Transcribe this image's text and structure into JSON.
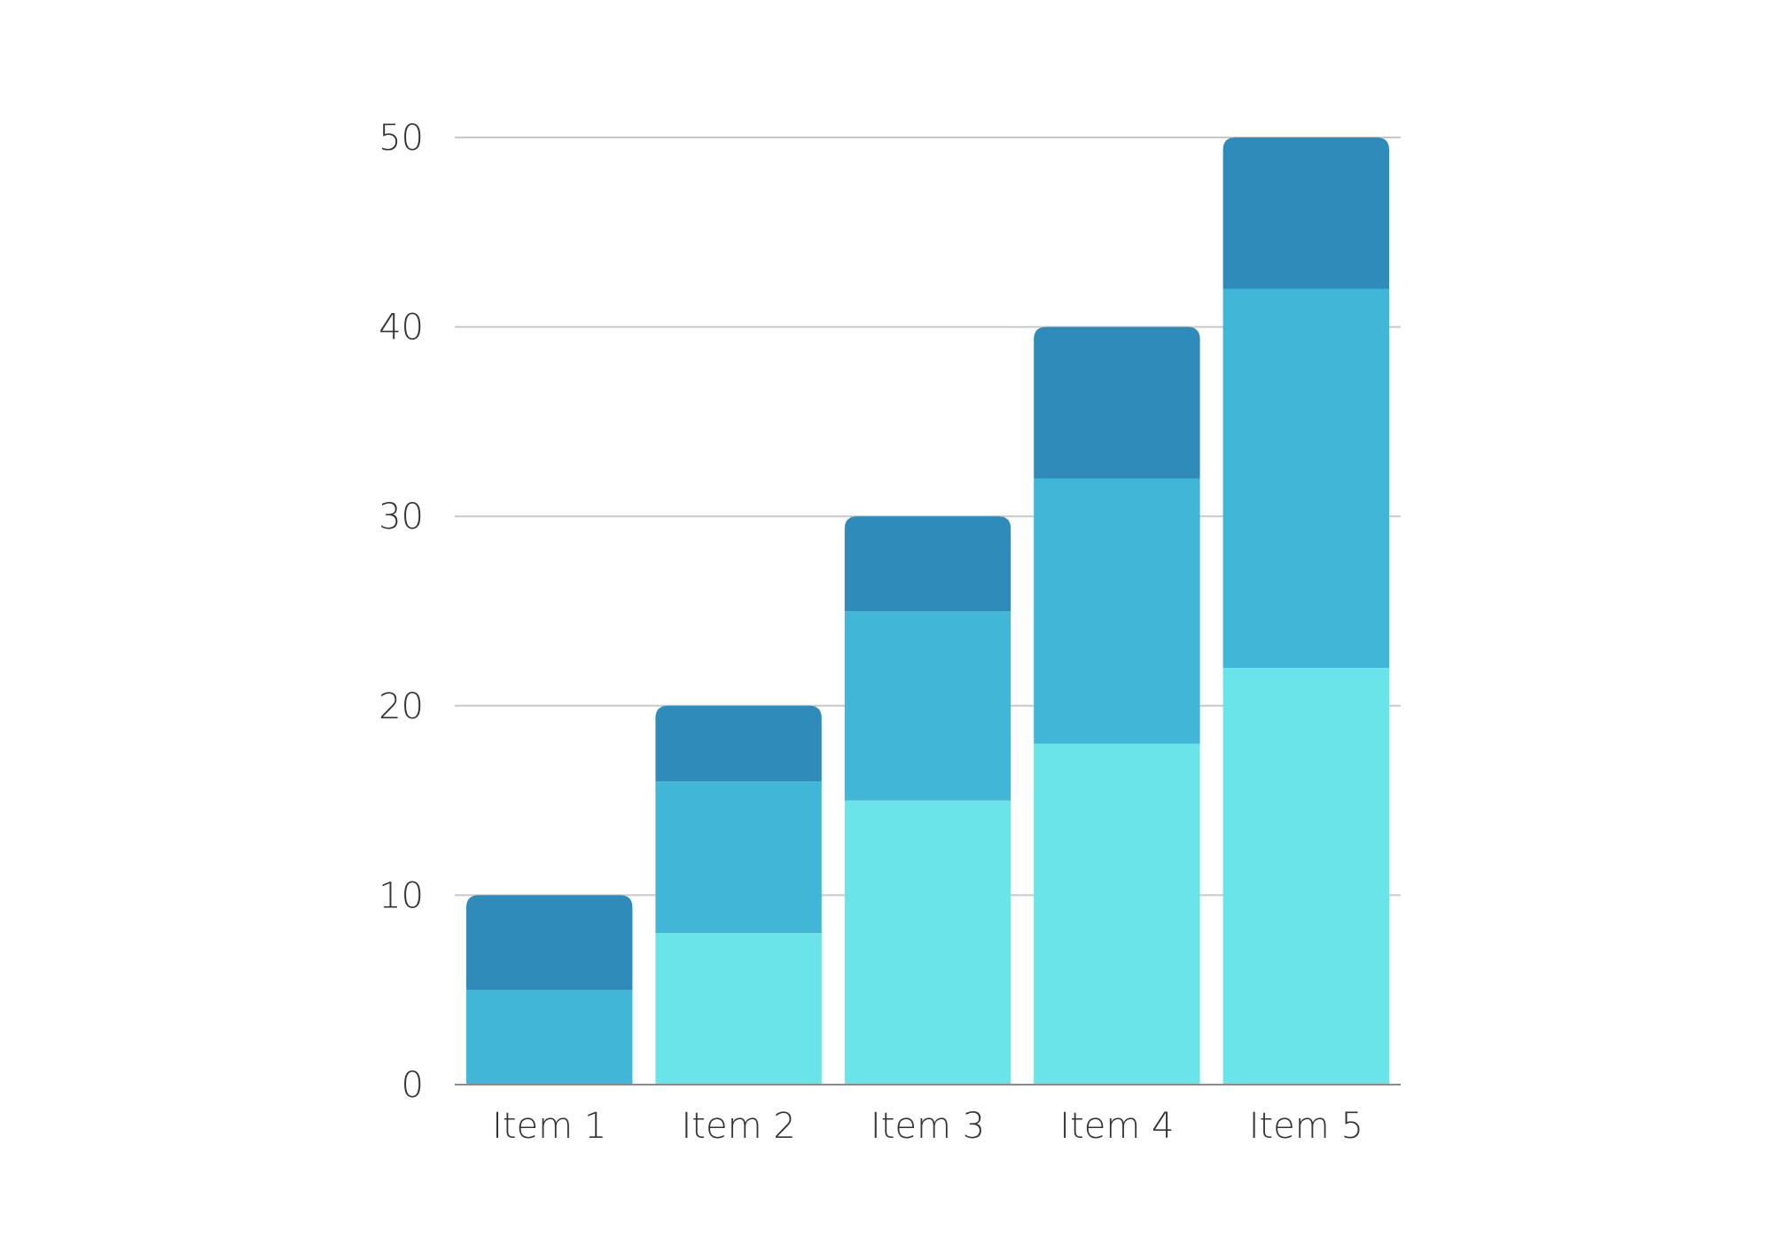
{
  "chart_data": {
    "type": "bar",
    "stacked": true,
    "categories": [
      "Item 1",
      "Item 2",
      "Item 3",
      "Item 4",
      "Item 5"
    ],
    "series": [
      {
        "values": [
          0,
          8,
          15,
          18,
          22
        ],
        "color": "#6ae4e8"
      },
      {
        "values": [
          5,
          8,
          10,
          14,
          20
        ],
        "color": "#42b6d6"
      },
      {
        "values": [
          5,
          4,
          5,
          8,
          8
        ],
        "color": "#2e8bba"
      }
    ],
    "ylim": [
      0,
      50
    ],
    "yticks": [
      0,
      10,
      20,
      30,
      40,
      50
    ],
    "grid": true,
    "legend": "none",
    "gridline_color": "#c8c8c8",
    "tick_label_color": "#333333"
  }
}
